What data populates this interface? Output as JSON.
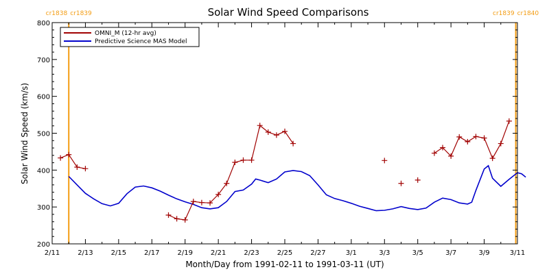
{
  "chart_data": {
    "type": "line",
    "title": "Solar Wind Speed Comparisons",
    "xlabel": "Month/Day from 1991-02-11 to 1991-03-11 (UT)",
    "ylabel": "Solar Wind Speed (km/s)",
    "xlim": [
      "1991-02-11",
      "1991-03-11"
    ],
    "ylim": [
      200,
      800
    ],
    "yticks": [
      200,
      300,
      400,
      500,
      600,
      700,
      800
    ],
    "xticks": [
      {
        "date": "1991-02-11",
        "label": "2/11"
      },
      {
        "date": "1991-02-13",
        "label": "2/13"
      },
      {
        "date": "1991-02-15",
        "label": "2/15"
      },
      {
        "date": "1991-02-17",
        "label": "2/17"
      },
      {
        "date": "1991-02-19",
        "label": "2/19"
      },
      {
        "date": "1991-02-21",
        "label": "2/21"
      },
      {
        "date": "1991-02-23",
        "label": "2/23"
      },
      {
        "date": "1991-02-25",
        "label": "2/25"
      },
      {
        "date": "1991-02-27",
        "label": "2/27"
      },
      {
        "date": "1991-03-01",
        "label": "3/1"
      },
      {
        "date": "1991-03-03",
        "label": "3/3"
      },
      {
        "date": "1991-03-05",
        "label": "3/5"
      },
      {
        "date": "1991-03-07",
        "label": "3/7"
      },
      {
        "date": "1991-03-09",
        "label": "3/9"
      },
      {
        "date": "1991-03-11",
        "label": "3/11"
      }
    ],
    "grid": false,
    "legend": "top-left",
    "carrington_markers": [
      {
        "date": "1991-02-12 00:00",
        "label_left": "cr1838",
        "label_right": "cr1839",
        "color": "#f39c12"
      },
      {
        "date": "1991-03-10 21:36",
        "label_left": "cr1839",
        "label_right": "cr1840",
        "color": "#f39c12"
      }
    ],
    "series": [
      {
        "name": "OMNI_M (12-hr avg)",
        "color": "#a00000",
        "marker": "+",
        "segments": [
          [
            [
              "1991-02-11 12:00",
              433
            ],
            [
              "1991-02-12 00:00",
              442
            ],
            [
              "1991-02-12 12:00",
              408
            ],
            [
              "1991-02-13 00:00",
              404
            ]
          ],
          [
            [
              "1991-02-18 00:00",
              278
            ],
            [
              "1991-02-18 12:00",
              268
            ],
            [
              "1991-02-19 00:00",
              265
            ],
            [
              "1991-02-19 12:00",
              315
            ],
            [
              "1991-02-20 00:00",
              312
            ],
            [
              "1991-02-20 12:00",
              311
            ],
            [
              "1991-02-21 00:00",
              334
            ],
            [
              "1991-02-21 12:00",
              364
            ],
            [
              "1991-02-22 00:00",
              421
            ],
            [
              "1991-02-22 12:00",
              427
            ],
            [
              "1991-02-23 00:00",
              427
            ],
            [
              "1991-02-23 12:00",
              521
            ],
            [
              "1991-02-24 00:00",
              503
            ],
            [
              "1991-02-24 12:00",
              495
            ],
            [
              "1991-02-25 00:00",
              505
            ],
            [
              "1991-02-25 12:00",
              472
            ]
          ],
          [
            [
              "1991-03-03 00:00",
              426
            ]
          ],
          [
            [
              "1991-03-04 00:00",
              364
            ]
          ],
          [
            [
              "1991-03-05 00:00",
              373
            ]
          ],
          [
            [
              "1991-03-06 00:00",
              446
            ],
            [
              "1991-03-06 12:00",
              461
            ],
            [
              "1991-03-07 00:00",
              438
            ],
            [
              "1991-03-07 12:00",
              490
            ],
            [
              "1991-03-08 00:00",
              477
            ],
            [
              "1991-03-08 12:00",
              491
            ],
            [
              "1991-03-09 00:00",
              487
            ],
            [
              "1991-03-09 12:00",
              432
            ],
            [
              "1991-03-10 00:00",
              472
            ],
            [
              "1991-03-10 12:00",
              533
            ]
          ]
        ]
      },
      {
        "name": "Predictive Science MAS Model",
        "color": "#0000cc",
        "marker": "none",
        "points": [
          [
            "1991-02-12 00:00",
            383
          ],
          [
            "1991-02-12 12:00",
            360
          ],
          [
            "1991-02-13 00:00",
            337
          ],
          [
            "1991-02-13 12:00",
            322
          ],
          [
            "1991-02-14 00:00",
            309
          ],
          [
            "1991-02-14 12:00",
            303
          ],
          [
            "1991-02-15 00:00",
            310
          ],
          [
            "1991-02-15 12:00",
            336
          ],
          [
            "1991-02-16 00:00",
            354
          ],
          [
            "1991-02-16 12:00",
            357
          ],
          [
            "1991-02-17 00:00",
            352
          ],
          [
            "1991-02-17 12:00",
            343
          ],
          [
            "1991-02-18 00:00",
            332
          ],
          [
            "1991-02-18 12:00",
            322
          ],
          [
            "1991-02-19 00:00",
            314
          ],
          [
            "1991-02-19 12:00",
            307
          ],
          [
            "1991-02-20 00:00",
            298
          ],
          [
            "1991-02-20 12:00",
            295
          ],
          [
            "1991-02-21 00:00",
            298
          ],
          [
            "1991-02-21 12:00",
            315
          ],
          [
            "1991-02-22 00:00",
            342
          ],
          [
            "1991-02-22 12:00",
            346
          ],
          [
            "1991-02-23 00:00",
            362
          ],
          [
            "1991-02-23 06:00",
            376
          ],
          [
            "1991-02-23 12:00",
            373
          ],
          [
            "1991-02-24 00:00",
            366
          ],
          [
            "1991-02-24 12:00",
            376
          ],
          [
            "1991-02-25 00:00",
            395
          ],
          [
            "1991-02-25 12:00",
            399
          ],
          [
            "1991-02-26 00:00",
            396
          ],
          [
            "1991-02-26 12:00",
            385
          ],
          [
            "1991-02-27 00:00",
            360
          ],
          [
            "1991-02-27 12:00",
            333
          ],
          [
            "1991-02-28 00:00",
            323
          ],
          [
            "1991-02-28 12:00",
            317
          ],
          [
            "1991-03-01 00:00",
            310
          ],
          [
            "1991-03-01 12:00",
            302
          ],
          [
            "1991-03-02 00:00",
            296
          ],
          [
            "1991-03-02 12:00",
            290
          ],
          [
            "1991-03-03 00:00",
            291
          ],
          [
            "1991-03-03 12:00",
            295
          ],
          [
            "1991-03-04 00:00",
            301
          ],
          [
            "1991-03-04 12:00",
            296
          ],
          [
            "1991-03-05 00:00",
            293
          ],
          [
            "1991-03-05 12:00",
            297
          ],
          [
            "1991-03-06 00:00",
            313
          ],
          [
            "1991-03-06 12:00",
            324
          ],
          [
            "1991-03-07 00:00",
            320
          ],
          [
            "1991-03-07 12:00",
            311
          ],
          [
            "1991-03-08 00:00",
            308
          ],
          [
            "1991-03-08 06:00",
            313
          ],
          [
            "1991-03-08 12:00",
            345
          ],
          [
            "1991-03-09 00:00",
            403
          ],
          [
            "1991-03-09 06:00",
            412
          ],
          [
            "1991-03-09 12:00",
            378
          ],
          [
            "1991-03-10 00:00",
            356
          ],
          [
            "1991-03-10 12:00",
            375
          ],
          [
            "1991-03-11 00:00",
            393
          ],
          [
            "1991-03-11 06:00",
            390
          ],
          [
            "1991-03-11 12:00",
            381
          ]
        ]
      }
    ]
  }
}
